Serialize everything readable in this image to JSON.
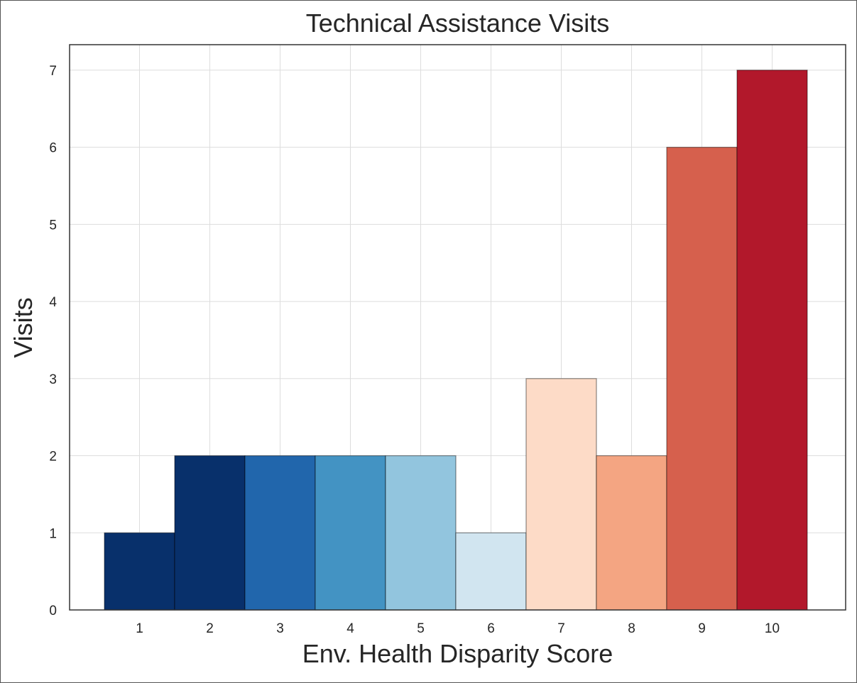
{
  "chart_data": {
    "type": "bar",
    "title": "Technical Assistance Visits",
    "xlabel": "Env. Health Disparity Score",
    "ylabel": "Visits",
    "categories": [
      "1",
      "2",
      "3",
      "4",
      "5",
      "6",
      "7",
      "8",
      "9",
      "10"
    ],
    "values": [
      1,
      2,
      2,
      2,
      2,
      1,
      3,
      2,
      6,
      7
    ],
    "colors": [
      "#08306b",
      "#08306b",
      "#2166ac",
      "#4393c3",
      "#92c5de",
      "#d1e5f0",
      "#fddbc7",
      "#f4a582",
      "#d6604d",
      "#b2182b"
    ],
    "yticks": [
      0,
      1,
      2,
      3,
      4,
      5,
      6,
      7
    ],
    "ylim": [
      0,
      7.33
    ],
    "grid": true,
    "legend": "none"
  }
}
